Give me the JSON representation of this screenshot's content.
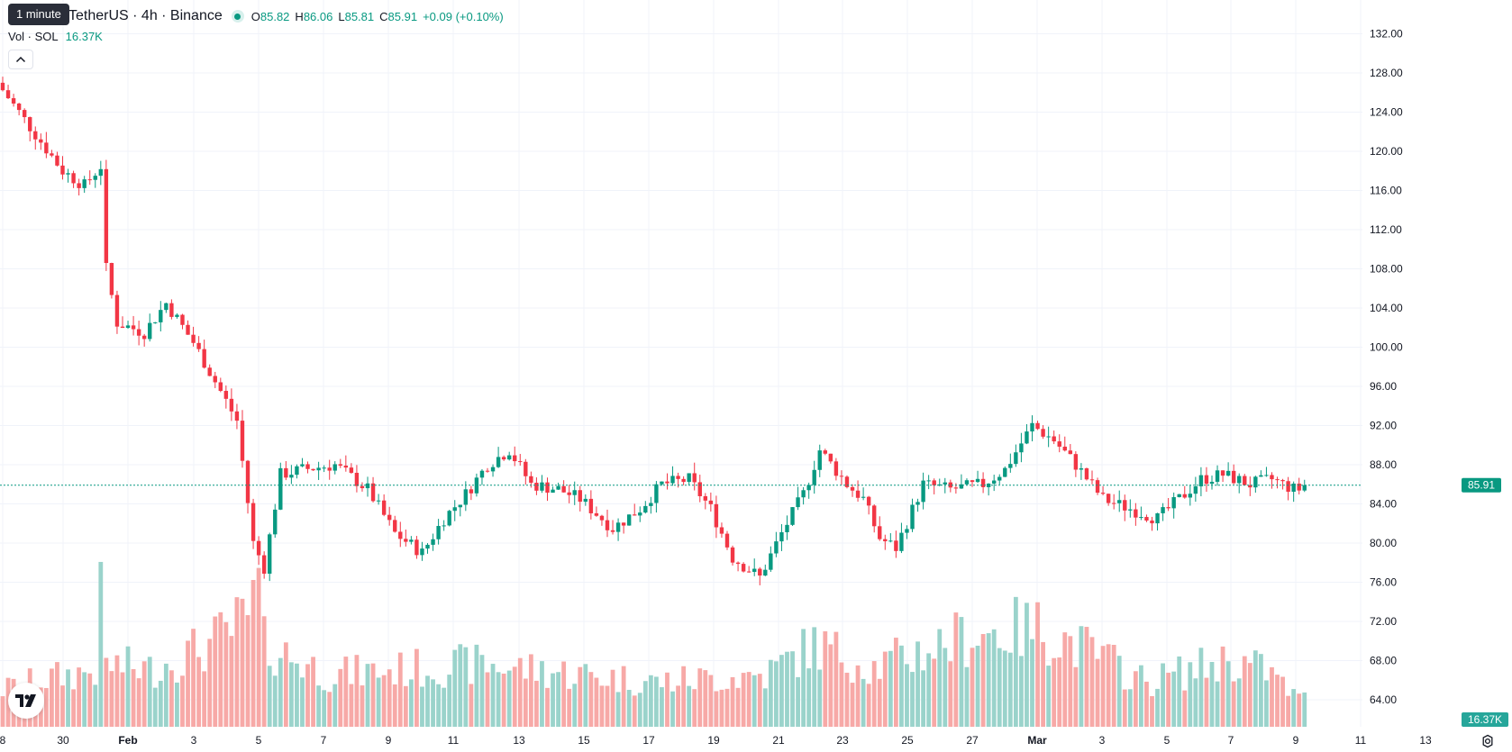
{
  "legend": {
    "tooltip": "1 minute",
    "symbol": "TetherUS · 4h · Binance",
    "open_label": "O",
    "open": "85.82",
    "high_label": "H",
    "high": "86.06",
    "low_label": "L",
    "low": "85.81",
    "close_label": "C",
    "close": "85.91",
    "change": "+0.09 (+0.10%)"
  },
  "volume_legend": {
    "label": "Vol · SOL",
    "value": "16.37K"
  },
  "last_price_badge": "85.91",
  "last_volume_badge": "16.37K",
  "colors": {
    "up": "#089981",
    "down": "#f23645",
    "up_volume": "#9ad3cb",
    "down_volume": "#f7a9a7",
    "grid": "#f0f3fa",
    "text": "#131722"
  },
  "icons": {
    "collapse": "chevron-up-icon",
    "logo": "tradingview-logo-icon",
    "settings": "gear-icon"
  },
  "chart_data": {
    "type": "candlestick",
    "symbol": "TetherUS · 4h · Binance",
    "y_ticks": [
      "132.00",
      "128.00",
      "124.00",
      "120.00",
      "116.00",
      "112.00",
      "108.00",
      "104.00",
      "100.00",
      "96.00",
      "92.00",
      "88.00",
      "84.00",
      "80.00",
      "76.00",
      "72.00",
      "68.00",
      "64.00"
    ],
    "ylim": [
      62.0,
      133.0
    ],
    "x_ticks": [
      "8",
      "30",
      "Feb",
      "3",
      "5",
      "7",
      "9",
      "11",
      "13",
      "15",
      "17",
      "19",
      "21",
      "23",
      "25",
      "27",
      "Mar",
      "3",
      "5",
      "7",
      "9",
      "11",
      "13"
    ],
    "waypoints": [
      [
        0,
        127.0
      ],
      [
        12,
        118.0
      ],
      [
        16,
        116.5
      ],
      [
        19,
        118.5
      ],
      [
        20,
        108.0
      ],
      [
        22,
        102.5
      ],
      [
        27,
        101.5
      ],
      [
        31,
        104.5
      ],
      [
        36,
        100.5
      ],
      [
        44,
        92.5
      ],
      [
        47,
        80.0
      ],
      [
        49,
        77.5
      ],
      [
        52,
        87.0
      ],
      [
        56,
        87.5
      ],
      [
        62,
        88.0
      ],
      [
        68,
        85.5
      ],
      [
        73,
        81.0
      ],
      [
        78,
        79.0
      ],
      [
        82,
        82.5
      ],
      [
        86,
        85.0
      ],
      [
        90,
        88.0
      ],
      [
        94,
        89.5
      ],
      [
        98,
        86.0
      ],
      [
        103,
        85.5
      ],
      [
        107,
        84.5
      ],
      [
        113,
        81.5
      ],
      [
        118,
        83.5
      ],
      [
        122,
        86.0
      ],
      [
        127,
        86.5
      ],
      [
        131,
        83.5
      ],
      [
        135,
        78.5
      ],
      [
        140,
        76.5
      ],
      [
        144,
        81.0
      ],
      [
        148,
        85.0
      ],
      [
        151,
        89.5
      ],
      [
        156,
        86.0
      ],
      [
        159,
        84.5
      ],
      [
        162,
        80.5
      ],
      [
        165,
        79.5
      ],
      [
        170,
        86.0
      ],
      [
        175,
        85.5
      ],
      [
        181,
        86.0
      ],
      [
        185,
        87.5
      ],
      [
        190,
        92.0
      ],
      [
        194,
        90.5
      ],
      [
        198,
        88.0
      ],
      [
        203,
        84.5
      ],
      [
        208,
        83.5
      ],
      [
        213,
        82.5
      ],
      [
        217,
        84.5
      ],
      [
        221,
        86.5
      ],
      [
        225,
        87.0
      ],
      [
        230,
        86.0
      ],
      [
        234,
        86.5
      ],
      [
        238,
        85.5
      ]
    ],
    "volume_profile": [
      [
        0,
        0.25
      ],
      [
        8,
        0.32
      ],
      [
        17,
        0.38
      ],
      [
        18,
        0.83
      ],
      [
        19,
        0.42
      ],
      [
        27,
        0.38
      ],
      [
        38,
        0.55
      ],
      [
        45,
        0.72
      ],
      [
        47,
        0.92
      ],
      [
        48,
        0.55
      ],
      [
        60,
        0.35
      ],
      [
        88,
        0.42
      ],
      [
        120,
        0.3
      ],
      [
        140,
        0.35
      ],
      [
        149,
        0.55
      ],
      [
        160,
        0.4
      ],
      [
        178,
        0.62
      ],
      [
        190,
        0.66
      ],
      [
        200,
        0.5
      ],
      [
        210,
        0.3
      ],
      [
        225,
        0.45
      ],
      [
        232,
        0.38
      ],
      [
        238,
        0.18
      ]
    ],
    "grid": true,
    "last_price": 85.91,
    "last_volume": "16.37K",
    "price_line_color": "#089981"
  }
}
